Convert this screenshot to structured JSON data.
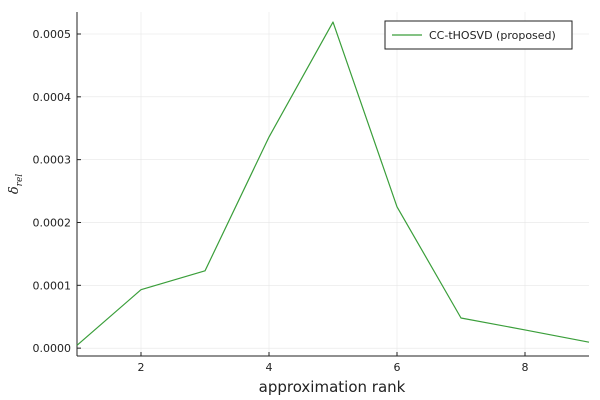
{
  "chart_data": {
    "type": "line",
    "title": "",
    "xlabel": "approximation rank",
    "ylabel_symbol": "δ",
    "ylabel_subscript": "rel",
    "xlim": [
      1,
      9
    ],
    "ylim": [
      -1.25e-05,
      0.000535
    ],
    "x_ticks": [
      2,
      4,
      6,
      8
    ],
    "x_tick_labels": [
      "2",
      "4",
      "6",
      "8"
    ],
    "y_ticks": [
      0,
      0.0001,
      0.0002,
      0.0003,
      0.0004,
      0.0005
    ],
    "y_tick_labels": [
      "0.0000",
      "0.0001",
      "0.0002",
      "0.0003",
      "0.0004",
      "0.0005"
    ],
    "grid": true,
    "legend_position": "top-right",
    "series": [
      {
        "name": "CC-tHOSVD (proposed)",
        "color": "#3a9e3a",
        "x": [
          1,
          2,
          3,
          4,
          5,
          6,
          7,
          8,
          9
        ],
        "y": [
          4.5e-06,
          9.3e-05,
          0.000123,
          0.000336,
          0.000519,
          0.000225,
          4.8e-05,
          2.9e-05,
          9.5e-06
        ]
      }
    ]
  }
}
